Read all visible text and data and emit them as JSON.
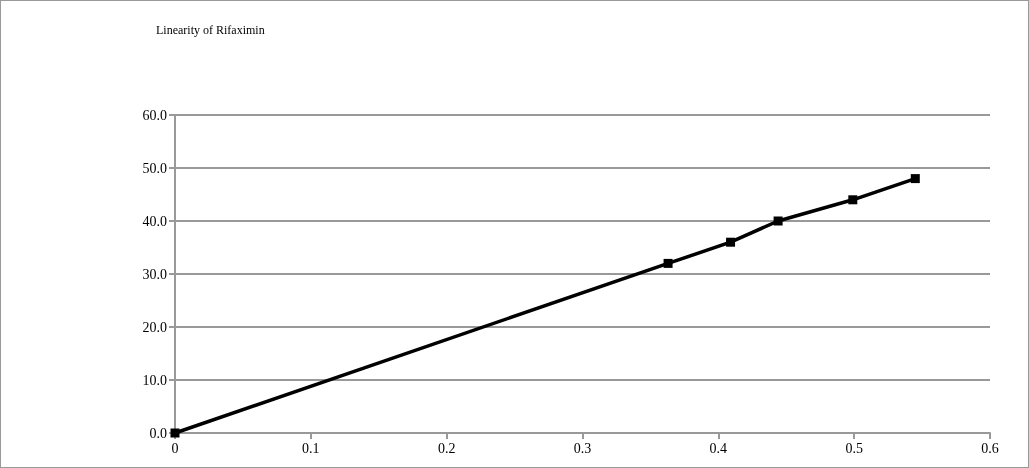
{
  "chart_data": {
    "type": "line",
    "title": "Linearity of Rifaximin",
    "x": [
      0,
      0.363,
      0.409,
      0.444,
      0.499,
      0.545
    ],
    "series": [
      {
        "color": "#000000",
        "values": [
          0,
          32,
          36,
          40,
          44,
          48
        ]
      }
    ],
    "xlim": [
      0,
      0.6
    ],
    "xticks": [
      0,
      0.1,
      0.2,
      0.3,
      0.4,
      0.5,
      0.6
    ],
    "ylim": [
      0,
      60
    ],
    "yticks": [
      {
        "value": 0,
        "label": "0.0"
      },
      {
        "value": 10,
        "label": "10.0"
      },
      {
        "value": 20,
        "label": "20.0"
      },
      {
        "value": 30,
        "label": "30.0"
      },
      {
        "value": 40,
        "label": "40.0"
      },
      {
        "value": 50,
        "label": "50.0"
      },
      {
        "value": 60,
        "label": "60.0"
      }
    ],
    "grid": "y",
    "marker": "square",
    "line_style": "solid"
  }
}
